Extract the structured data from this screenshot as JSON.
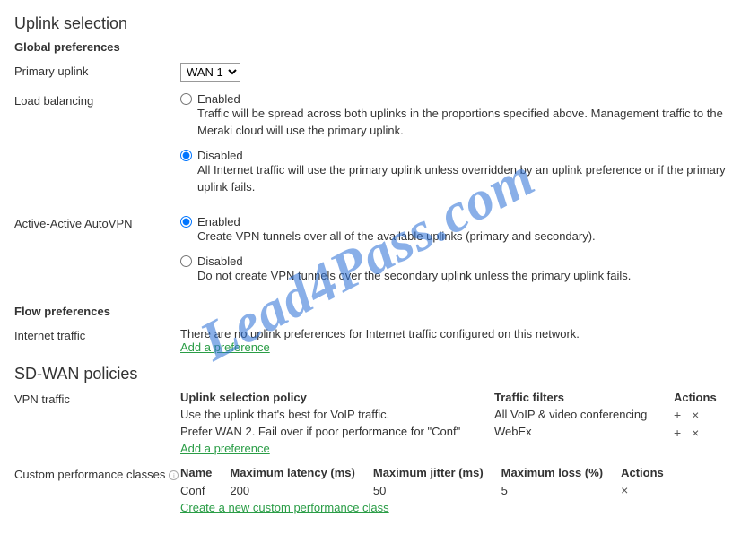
{
  "watermark": "Lead4Pass.com",
  "uplink_section": {
    "title": "Uplink selection",
    "global_preferences_heading": "Global preferences",
    "primary_uplink": {
      "label": "Primary uplink",
      "value": "WAN 1"
    },
    "load_balancing": {
      "label": "Load balancing",
      "enabled": {
        "title": "Enabled",
        "desc": "Traffic will be spread across both uplinks in the proportions specified above. Management traffic to the Meraki cloud will use the primary uplink."
      },
      "disabled": {
        "title": "Disabled",
        "desc": "All Internet traffic will use the primary uplink unless overridden by an uplink preference or if the primary uplink fails."
      },
      "selected": "disabled"
    },
    "active_active": {
      "label": "Active-Active AutoVPN",
      "enabled": {
        "title": "Enabled",
        "desc": "Create VPN tunnels over all of the available uplinks (primary and secondary)."
      },
      "disabled": {
        "title": "Disabled",
        "desc": "Do not create VPN tunnels over the secondary uplink unless the primary uplink fails."
      },
      "selected": "enabled"
    }
  },
  "flow_preferences": {
    "heading": "Flow preferences",
    "internet_traffic": {
      "label": "Internet traffic",
      "message": "There are no uplink preferences for Internet traffic configured on this network.",
      "add_link": "Add a preference"
    }
  },
  "sdwan": {
    "title": "SD-WAN policies",
    "vpn_traffic": {
      "label": "VPN traffic",
      "col_policy": "Uplink selection policy",
      "col_filters": "Traffic filters",
      "col_actions": "Actions",
      "rows": [
        {
          "policy": "Use the uplink that's best for VoIP traffic.",
          "filter": "All VoIP & video conferencing",
          "actions": "+ ×"
        },
        {
          "policy": "Prefer WAN 2. Fail over if poor performance for \"Conf\"",
          "filter": "WebEx",
          "actions": "+ ×"
        }
      ],
      "add_link": "Add a preference"
    },
    "custom_classes": {
      "label": "Custom performance classes",
      "columns": {
        "name": "Name",
        "latency": "Maximum latency (ms)",
        "jitter": "Maximum jitter (ms)",
        "loss": "Maximum loss (%)",
        "actions": "Actions"
      },
      "row": {
        "name": "Conf",
        "latency": "200",
        "jitter": "50",
        "loss": "5",
        "actions": "×"
      },
      "add_link": "Create a new custom performance class"
    }
  }
}
